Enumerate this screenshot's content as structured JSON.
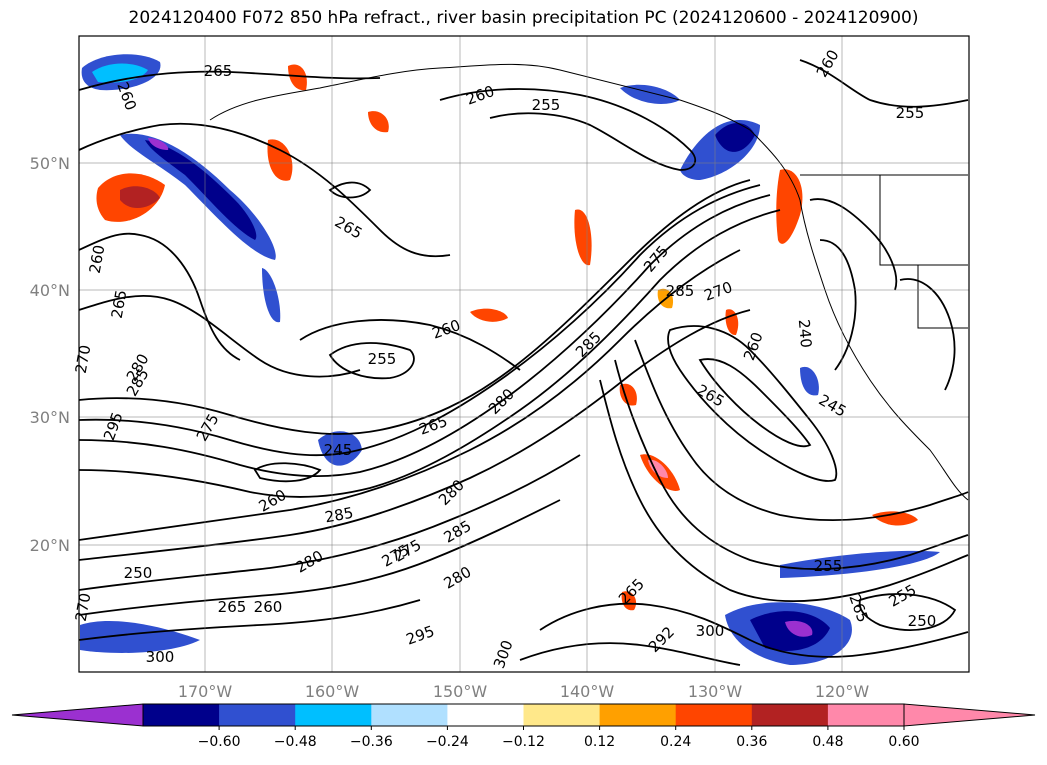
{
  "title": "2024120400 F072 850 hPa refract., river basin precipitation PC (2024120600 - 2024120900)",
  "map": {
    "lat_labels": [
      "50°N",
      "40°N",
      "30°N",
      "20°N"
    ],
    "lon_labels": [
      "170°W",
      "160°W",
      "150°W",
      "140°W",
      "130°W",
      "120°W"
    ],
    "contour_labels": [
      {
        "text": "265"
      },
      {
        "text": "260"
      },
      {
        "text": "255"
      },
      {
        "text": "260"
      },
      {
        "text": "255"
      },
      {
        "text": "260"
      },
      {
        "text": "265"
      },
      {
        "text": "260"
      },
      {
        "text": "265"
      },
      {
        "text": "270"
      },
      {
        "text": "280"
      },
      {
        "text": "285"
      },
      {
        "text": "255"
      },
      {
        "text": "260"
      },
      {
        "text": "275"
      },
      {
        "text": "285"
      },
      {
        "text": "270"
      },
      {
        "text": "285"
      },
      {
        "text": "260"
      },
      {
        "text": "240"
      },
      {
        "text": "265"
      },
      {
        "text": "245"
      },
      {
        "text": "295"
      },
      {
        "text": "275"
      },
      {
        "text": "245"
      },
      {
        "text": "265"
      },
      {
        "text": "280"
      },
      {
        "text": "280"
      },
      {
        "text": "260"
      },
      {
        "text": "285"
      },
      {
        "text": "275"
      },
      {
        "text": "285"
      },
      {
        "text": "280"
      },
      {
        "text": "280"
      },
      {
        "text": "265"
      },
      {
        "text": "255"
      },
      {
        "text": "265"
      },
      {
        "text": "255"
      },
      {
        "text": "250"
      },
      {
        "text": "250"
      },
      {
        "text": "295"
      },
      {
        "text": "300"
      },
      {
        "text": "300"
      },
      {
        "text": "292"
      },
      {
        "text": "265"
      },
      {
        "text": "260"
      },
      {
        "text": "275"
      },
      {
        "text": "270"
      },
      {
        "text": "300"
      }
    ]
  },
  "colorbar": {
    "ticks": [
      "−0.60",
      "−0.48",
      "−0.36",
      "−0.24",
      "−0.12",
      "0.12",
      "0.24",
      "0.36",
      "0.48",
      "0.60"
    ],
    "colors": [
      "#9b30d0",
      "#00008b",
      "#3050d0",
      "#00bfff",
      "#b0e0ff",
      "#ffffff",
      "#ffe88a",
      "#ffa000",
      "#ff4500",
      "#b22222",
      "#ff88aa"
    ],
    "under_color": "#9b30d0",
    "over_color": "#ff88aa"
  }
}
